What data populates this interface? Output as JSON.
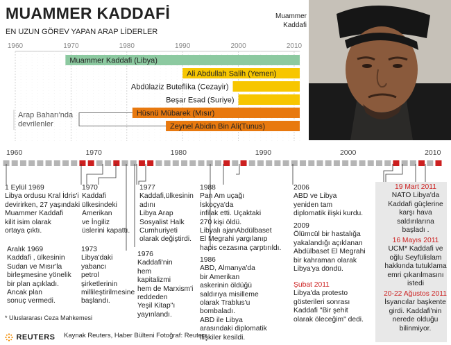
{
  "header": {
    "title": "MUAMMER KADDAFİ",
    "subtitle": "EN UZUN GÖREV YAPAN ARAP LİDERLER",
    "photo_caption": "Muammer Kaddafi"
  },
  "chart_data": [
    {
      "type": "gantt",
      "title": "EN UZUN GÖREV YAPAN ARAP LİDERLER",
      "xlim": [
        1960,
        2011
      ],
      "x_ticks": [
        "1960",
        "1970",
        "1980",
        "1990",
        "2000",
        "2010"
      ],
      "annotation": "Arap Baharı'nda devrilenler",
      "bars": [
        {
          "label": "Muammer Kaddafi (Libya)",
          "start": 1969,
          "end": 2011,
          "color": "#8cc9a0"
        },
        {
          "label": "Ali Abdullah Salih (Yemen)",
          "start": 1990,
          "end": 2011,
          "color": "#f7c600"
        },
        {
          "label": "Abdülaziz Buteflika (Cezayir)",
          "start": 1999,
          "end": 2011,
          "color": "#f7c600"
        },
        {
          "label": "Beşar Esad (Suriye)",
          "start": 2000,
          "end": 2011,
          "color": "#f7c600"
        },
        {
          "label": "Hüsnü Mübarek (Mısır)",
          "start": 1981,
          "end": 2011,
          "color": "#e8790f"
        },
        {
          "label": "Zeynel Abidin Bin Ali(Tunus)",
          "start": 1987,
          "end": 2011,
          "color": "#e8790f"
        }
      ]
    },
    {
      "type": "timeline",
      "x_ticks": [
        "1960",
        "1970",
        "1980",
        "1990",
        "2000",
        "2010"
      ],
      "xlim": [
        1960,
        2011
      ],
      "event_years": [
        1969,
        1970,
        1973,
        1976,
        1977,
        1988,
        1986,
        2006,
        2009,
        2011
      ]
    }
  ],
  "events": {
    "e1969": {
      "year": "1 Eylül 1969",
      "text": [
        "Libya ordusu Kral İdris'i",
        "devirirken, 27 yaşındaki",
        "Muammer Kaddafi",
        "kilit isim olarak",
        "ortaya çıktı."
      ]
    },
    "e1969b": {
      "year": "Aralık 1969",
      "text": [
        "Kaddafi , ülkesinin",
        "Sudan ve Mısır'la",
        "birleşmesine yönelik",
        "bir plan açıkladı.",
        "Ancak plan",
        "sonuç vermedi."
      ]
    },
    "e1970": {
      "year": "1970",
      "text": [
        "Kaddafi",
        "ülkesindeki",
        "Amerikan",
        "ve İngiliz",
        "üslerini kapattı."
      ]
    },
    "e1973": {
      "year": "1973",
      "text": [
        "Libya'daki",
        "yabancı",
        "petrol",
        "şirketlerinin",
        "millileştirilmesine",
        "başlandı."
      ]
    },
    "e1977": {
      "year": "1977",
      "text": [
        "Kaddafi,ülkesinin",
        "adını",
        "Libya Arap",
        "Sosyalist Halk",
        "Cumhuriyeti",
        "olarak değiştirdi."
      ]
    },
    "e1976": {
      "year": "1976",
      "text": [
        "Kaddafi'nin",
        "hem",
        "kapitalizmi",
        "hem de Marxism'i",
        "reddeden",
        "Yeşil Kitap\"ı",
        "yayınlandı."
      ]
    },
    "e1988": {
      "year": "1988",
      "text": [
        "Pan Am uçağı",
        "İskoçya'da",
        "infilak etti.  Uçaktaki",
        "270 kişi öldü.",
        "Libyalı ajanAbdülbaset",
        "El Megrahi yargılanıp",
        "hapis cezasına çarptırıldı."
      ]
    },
    "e1986": {
      "year": "1986",
      "text": [
        "ABD, Almanya'da",
        "bir Amerikan",
        "askerinin öldüğü",
        "saldırıya misilleme",
        "olarak Trablus'u",
        "bombaladı.",
        "ABD ile Libya",
        "arasındaki diplomatik",
        "ilişkiler kesildi."
      ]
    },
    "e2006": {
      "year": "2006",
      "text": [
        "ABD ve Libya",
        "yeniden tam",
        "diplomatik ilişki kurdu."
      ]
    },
    "e2009": {
      "year": "2009",
      "text": [
        "Ölümcül bir hastalığa",
        "yakalandığı açıklanan",
        "Abdülbaset El Megrahi",
        "bir kahraman olarak",
        "Libya'ya döndü."
      ]
    },
    "e2011feb": {
      "year": "Şubat 2011",
      "text": [
        "Libya'da protesto",
        "gösterileri sonrası",
        "Kaddafi \"Bir şehit",
        "olarak öleceğim\" dedi."
      ]
    },
    "e2011mar": {
      "year": "19 Mart 2011",
      "text": [
        "NATO Libya'da",
        "Kaddafi güçlerine",
        "karşı hava",
        "saldırılarına",
        "başladı ."
      ]
    },
    "e2011may": {
      "year": "16 Mayıs 2011",
      "text": [
        "UCM* Kaddafi ve",
        "oğlu Seyfülislam",
        "hakkında tutuklama",
        "emri çıkarılmasını",
        "istedi"
      ]
    },
    "e2011aug": {
      "year": "20-22 Ağustos 2011",
      "text": [
        "İsyancılar başkente",
        "girdi. Kaddafi'nin",
        "nerede olduğu",
        "bilinmiyor."
      ]
    }
  },
  "footer": {
    "footnote": "* Uluslararası Ceza Mahkemesi",
    "logo": "REUTERS",
    "source": "Kaynak Reuters, Haber Bülteni Fotoğraf: Reuters"
  },
  "colors": {
    "marker_red": "#cc1f1f",
    "marker_grey": "#b5b5b5",
    "panel": "#e8e8e8"
  }
}
